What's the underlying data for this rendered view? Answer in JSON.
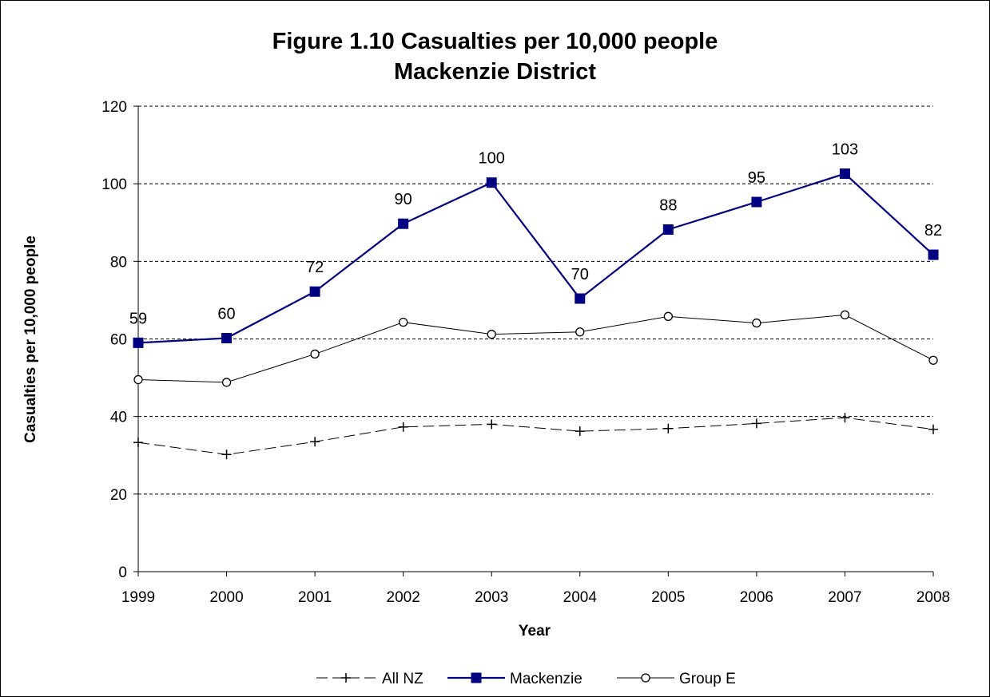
{
  "chart_data": {
    "type": "line",
    "title": "Figure 1.10 Casualties per 10,000 people",
    "subtitle": "Mackenzie District",
    "xlabel": "Year",
    "ylabel": "Casualties per 10,000 people",
    "categories": [
      "1999",
      "2000",
      "2001",
      "2002",
      "2003",
      "2004",
      "2005",
      "2006",
      "2007",
      "2008"
    ],
    "ylim": [
      0,
      120
    ],
    "yticks": [
      0,
      20,
      40,
      60,
      80,
      100,
      120
    ],
    "grid": "horizontal dashed",
    "legend_position": "bottom",
    "series": [
      {
        "name": "All NZ",
        "values": [
          33.3,
          30.2,
          33.5,
          37.3,
          38.0,
          36.2,
          36.9,
          38.2,
          39.7,
          36.7
        ],
        "color": "#000000",
        "marker": "plus",
        "line": "dashed"
      },
      {
        "name": "Mackenzie",
        "values": [
          59,
          60.2,
          72.2,
          89.7,
          100.3,
          70.4,
          88.2,
          95.3,
          102.6,
          81.7
        ],
        "labels": [
          "59",
          "60",
          "72",
          "90",
          "100",
          "70",
          "88",
          "95",
          "103",
          "82"
        ],
        "color": "#000080",
        "marker": "square",
        "line": "solid"
      },
      {
        "name": "Group E",
        "values": [
          49.5,
          48.8,
          56.1,
          64.3,
          61.2,
          61.8,
          65.8,
          64.1,
          66.2,
          54.5
        ],
        "color": "#000000",
        "marker": "circle",
        "line": "solid"
      }
    ]
  }
}
